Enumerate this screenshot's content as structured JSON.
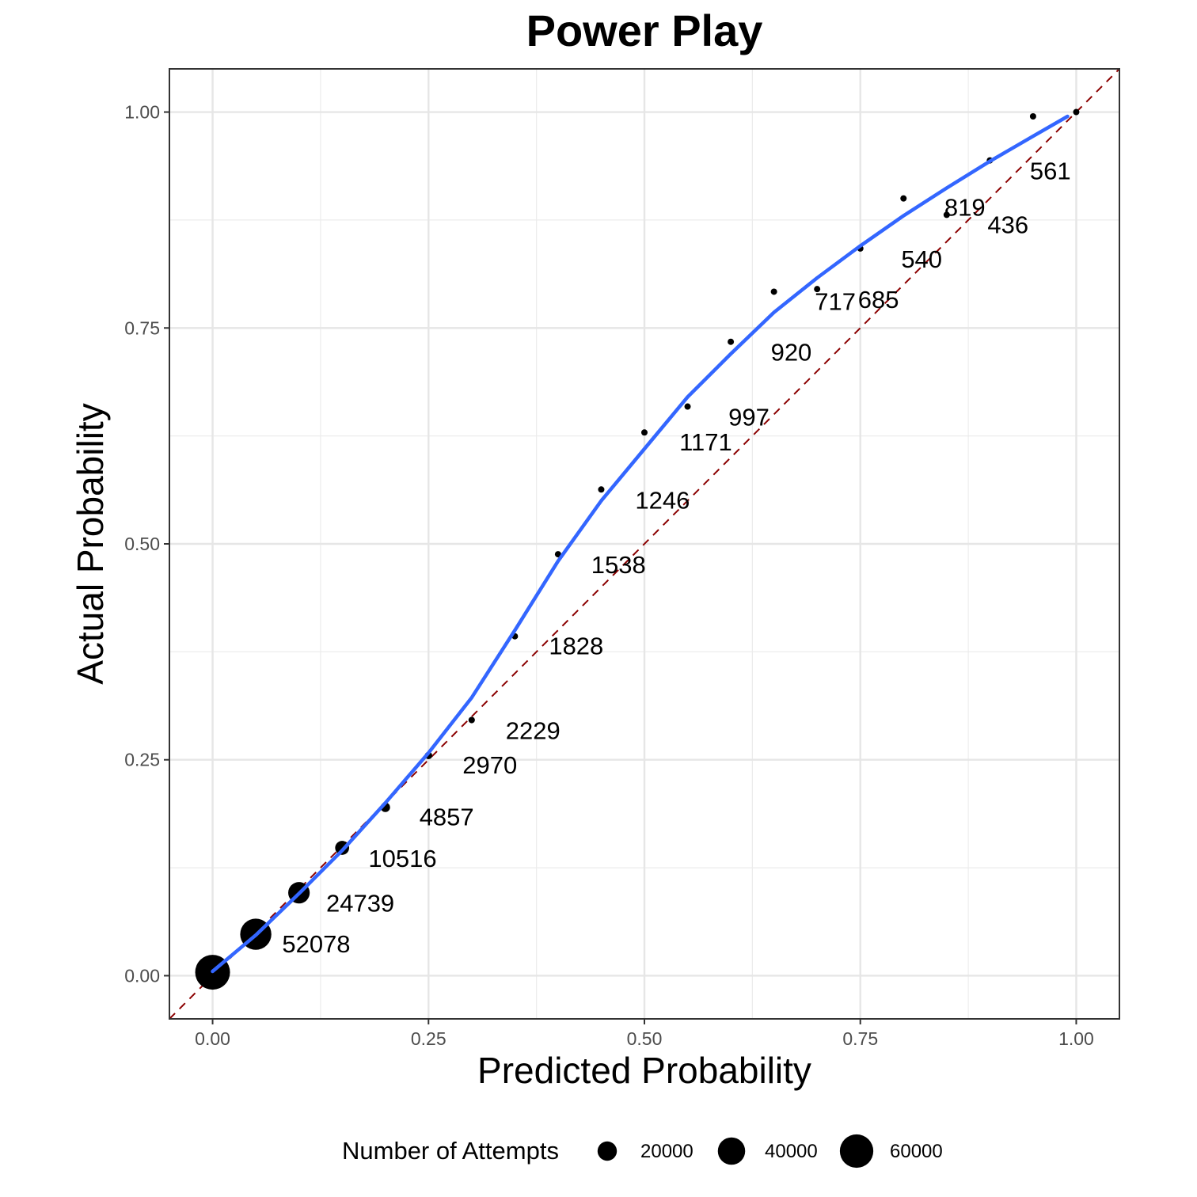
{
  "chart_data": {
    "type": "scatter",
    "title": "Power Play",
    "xlabel": "Predicted Probability",
    "ylabel": "Actual Probability",
    "xlim": [
      -0.05,
      1.05
    ],
    "ylim": [
      -0.05,
      1.05
    ],
    "x_ticks": [
      "0.00",
      "0.25",
      "0.50",
      "0.75",
      "1.00"
    ],
    "y_ticks": [
      "0.00",
      "0.25",
      "0.50",
      "0.75",
      "1.00"
    ],
    "grid": true,
    "legend": {
      "title": "Number of Attempts",
      "position": "bottom",
      "entries": [
        {
          "label": "20000",
          "value": 20000
        },
        {
          "label": "40000",
          "value": 40000
        },
        {
          "label": "60000",
          "value": 60000
        }
      ]
    },
    "points": [
      {
        "x": 0.0,
        "y": 0.004,
        "n": 65000,
        "label": ""
      },
      {
        "x": 0.05,
        "y": 0.048,
        "n": 52078,
        "label": "52078"
      },
      {
        "x": 0.1,
        "y": 0.096,
        "n": 24739,
        "label": "24739"
      },
      {
        "x": 0.15,
        "y": 0.148,
        "n": 10516,
        "label": "10516"
      },
      {
        "x": 0.2,
        "y": 0.195,
        "n": 4857,
        "label": "4857"
      },
      {
        "x": 0.25,
        "y": 0.255,
        "n": 2970,
        "label": "2970"
      },
      {
        "x": 0.3,
        "y": 0.296,
        "n": 2229,
        "label": "2229"
      },
      {
        "x": 0.35,
        "y": 0.393,
        "n": 1828,
        "label": "1828"
      },
      {
        "x": 0.4,
        "y": 0.488,
        "n": 1538,
        "label": "1538"
      },
      {
        "x": 0.45,
        "y": 0.563,
        "n": 1246,
        "label": "1246"
      },
      {
        "x": 0.5,
        "y": 0.629,
        "n": 1171,
        "label": "1171"
      },
      {
        "x": 0.55,
        "y": 0.659,
        "n": 997,
        "label": "997"
      },
      {
        "x": 0.6,
        "y": 0.734,
        "n": 920,
        "label": "920"
      },
      {
        "x": 0.65,
        "y": 0.792,
        "n": 717,
        "label": "717"
      },
      {
        "x": 0.7,
        "y": 0.795,
        "n": 685,
        "label": "685"
      },
      {
        "x": 0.75,
        "y": 0.842,
        "n": 540,
        "label": "540"
      },
      {
        "x": 0.8,
        "y": 0.9,
        "n": 819,
        "label": "819"
      },
      {
        "x": 0.85,
        "y": 0.881,
        "n": 436,
        "label": "436"
      },
      {
        "x": 0.9,
        "y": 0.944,
        "n": 561,
        "label": "561"
      },
      {
        "x": 0.95,
        "y": 0.995,
        "n": 400,
        "label": ""
      },
      {
        "x": 1.0,
        "y": 1.0,
        "n": 300,
        "label": ""
      }
    ],
    "label_positions": [
      {
        "label": "52078",
        "x": 0.12,
        "y": 0.027
      },
      {
        "label": "24739",
        "x": 0.171,
        "y": 0.074
      },
      {
        "label": "10516",
        "x": 0.22,
        "y": 0.126
      },
      {
        "label": "4857",
        "x": 0.271,
        "y": 0.174
      },
      {
        "label": "2970",
        "x": 0.321,
        "y": 0.234
      },
      {
        "label": "2229",
        "x": 0.371,
        "y": 0.274
      },
      {
        "label": "1828",
        "x": 0.421,
        "y": 0.372
      },
      {
        "label": "1538",
        "x": 0.47,
        "y": 0.466
      },
      {
        "label": "1246",
        "x": 0.521,
        "y": 0.541
      },
      {
        "label": "1171",
        "x": 0.571,
        "y": 0.608
      },
      {
        "label": "997",
        "x": 0.621,
        "y": 0.637
      },
      {
        "label": "920",
        "x": 0.67,
        "y": 0.712
      },
      {
        "label": "717",
        "x": 0.721,
        "y": 0.771
      },
      {
        "label": "685",
        "x": 0.771,
        "y": 0.773
      },
      {
        "label": "540",
        "x": 0.821,
        "y": 0.82
      },
      {
        "label": "819",
        "x": 0.871,
        "y": 0.88
      },
      {
        "label": "436",
        "x": 0.921,
        "y": 0.86
      },
      {
        "label": "561",
        "x": 0.97,
        "y": 0.922
      }
    ],
    "smooth_line": {
      "color": "#3366ff",
      "x": [
        0.0,
        0.05,
        0.1,
        0.15,
        0.2,
        0.25,
        0.3,
        0.35,
        0.4,
        0.45,
        0.5,
        0.55,
        0.6,
        0.65,
        0.7,
        0.75,
        0.8,
        0.85,
        0.9,
        0.95,
        0.99
      ],
      "y": [
        0.005,
        0.047,
        0.095,
        0.145,
        0.2,
        0.258,
        0.322,
        0.4,
        0.48,
        0.55,
        0.61,
        0.67,
        0.72,
        0.768,
        0.808,
        0.845,
        0.88,
        0.912,
        0.943,
        0.972,
        0.995
      ]
    },
    "reference_line": {
      "color": "#8b0000",
      "style": "dashed",
      "from": [
        -0.05,
        -0.05
      ],
      "to": [
        1.05,
        1.05
      ]
    }
  }
}
